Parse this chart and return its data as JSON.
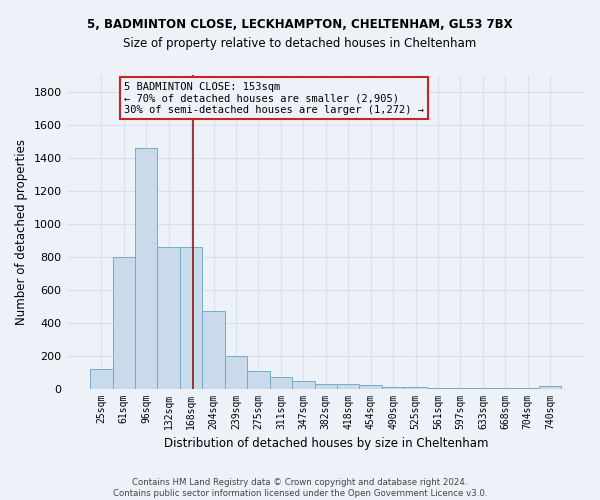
{
  "title1": "5, BADMINTON CLOSE, LECKHAMPTON, CHELTENHAM, GL53 7BX",
  "title2": "Size of property relative to detached houses in Cheltenham",
  "xlabel": "Distribution of detached houses by size in Cheltenham",
  "ylabel": "Number of detached properties",
  "categories": [
    "25sqm",
    "61sqm",
    "96sqm",
    "132sqm",
    "168sqm",
    "204sqm",
    "239sqm",
    "275sqm",
    "311sqm",
    "347sqm",
    "382sqm",
    "418sqm",
    "454sqm",
    "490sqm",
    "525sqm",
    "561sqm",
    "597sqm",
    "633sqm",
    "668sqm",
    "704sqm",
    "740sqm"
  ],
  "values": [
    120,
    800,
    1460,
    860,
    860,
    470,
    200,
    105,
    70,
    45,
    30,
    25,
    20,
    10,
    10,
    5,
    5,
    5,
    5,
    5,
    15
  ],
  "bar_color": "#c9daea",
  "bar_edge_color": "#7aaac8",
  "bg_color": "#edf1f8",
  "grid_color": "#d8e0ed",
  "annotation_text": "5 BADMINTON CLOSE: 153sqm\n← 70% of detached houses are smaller (2,905)\n30% of semi-detached houses are larger (1,272) →",
  "annotation_box_color": "#cc2222",
  "line_color": "#8b1a1a",
  "footnote": "Contains HM Land Registry data © Crown copyright and database right 2024.\nContains public sector information licensed under the Open Government Licence v3.0.",
  "ylim": [
    0,
    1900
  ],
  "yticks": [
    0,
    200,
    400,
    600,
    800,
    1000,
    1200,
    1400,
    1600,
    1800
  ]
}
